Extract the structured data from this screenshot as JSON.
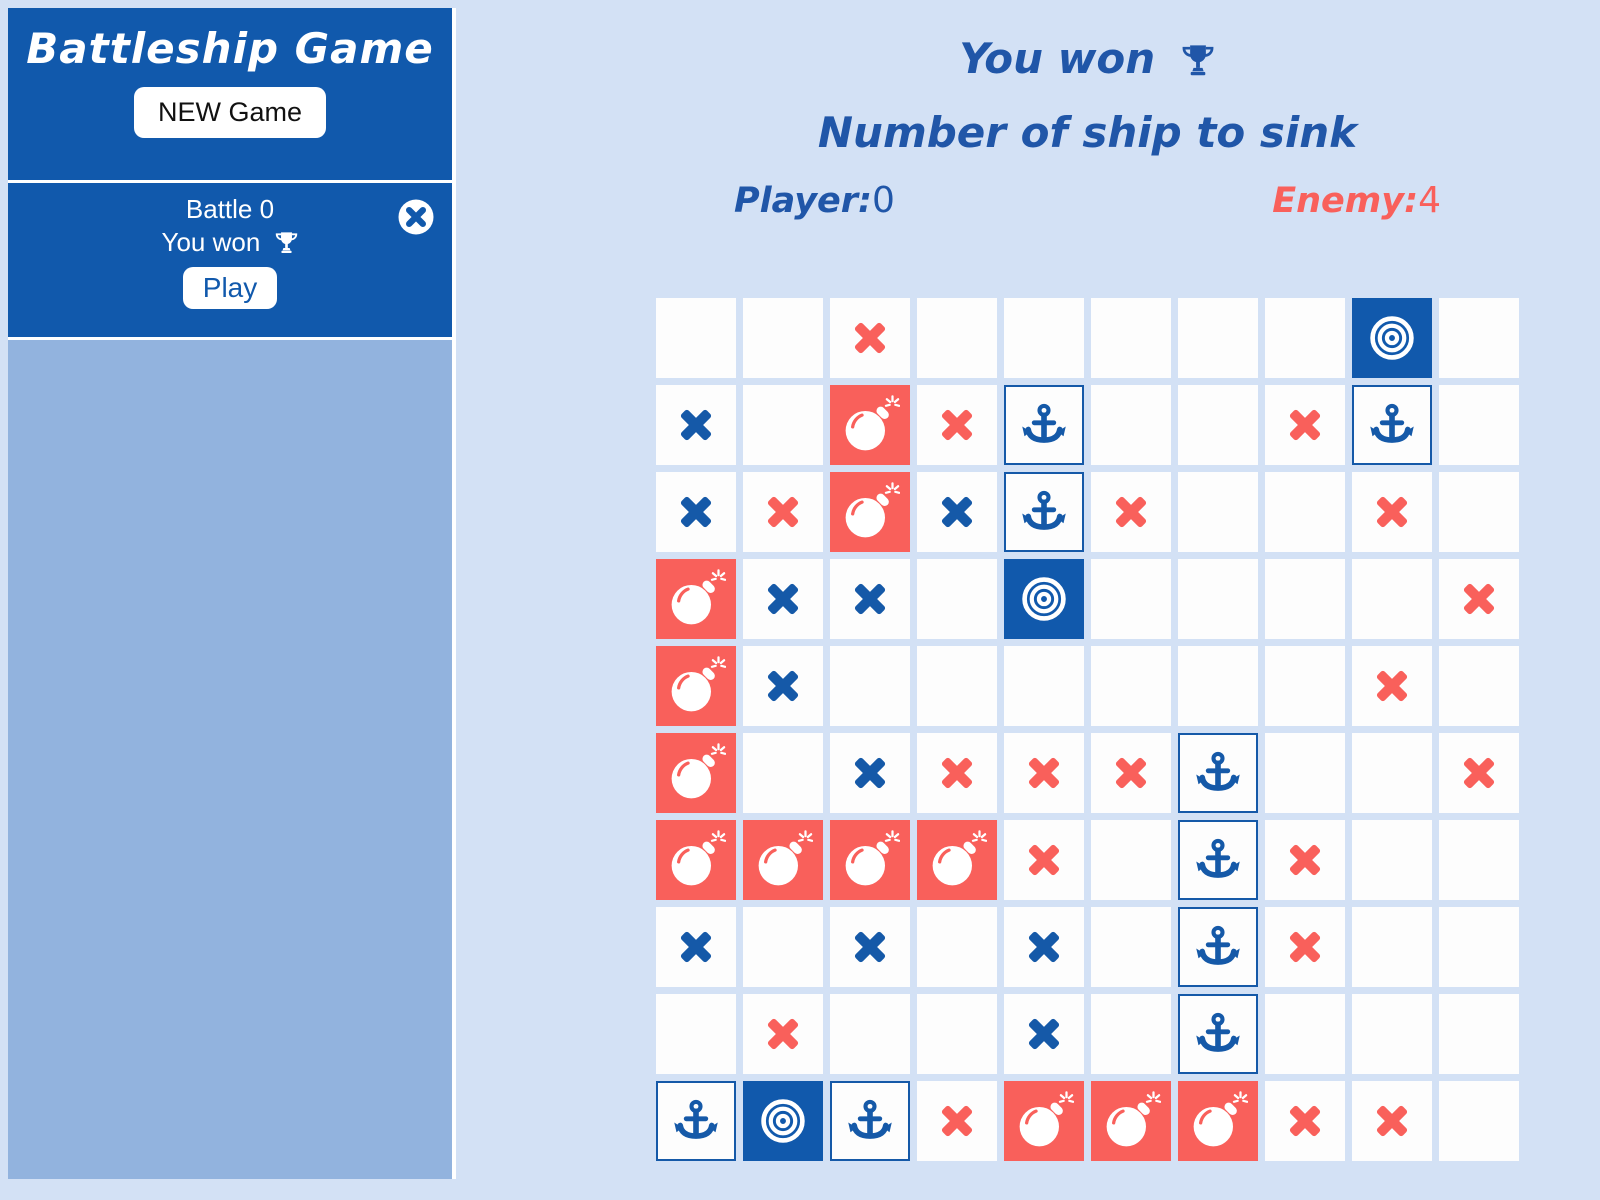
{
  "app": {
    "title": "Battleship Game"
  },
  "sidebar": {
    "new_game_label": "NEW Game",
    "battle": {
      "name": "Battle 0",
      "result": "You won",
      "play_label": "Play"
    }
  },
  "header": {
    "result_title": "You won",
    "subtitle": "Number of ship to sink",
    "player_label": "Player:",
    "player_count": "0",
    "enemy_label": "Enemy:",
    "enemy_count": "4"
  },
  "colors": {
    "page_bg": "#D3E1F5",
    "sidebar_blue": "#1159AC",
    "sidebar_light": "#92B3DE",
    "header_text_blue": "#2056A8",
    "mark_blue": "#1559A8",
    "salmon_red": "#F9605B",
    "cell_bg": "#FDFDFD"
  },
  "grid": {
    "cell_types": {
      "bx": "blue-x-mark",
      "rx": "red-x-mark",
      "bomb": "bomb-hit",
      "anchor": "ship-anchor",
      "target": "sunk-target",
      "": "empty"
    },
    "rows": [
      [
        "",
        "",
        "rx",
        "",
        "",
        "",
        "",
        "",
        "target",
        ""
      ],
      [
        "bx",
        "",
        "bomb",
        "rx",
        "anchor",
        "",
        "",
        "rx",
        "anchor",
        ""
      ],
      [
        "bx",
        "rx",
        "bomb",
        "bx",
        "anchor",
        "rx",
        "",
        "",
        "rx",
        ""
      ],
      [
        "bomb",
        "bx",
        "bx",
        "",
        "target",
        "",
        "",
        "",
        "",
        "rx"
      ],
      [
        "bomb",
        "bx",
        "",
        "",
        "",
        "",
        "",
        "",
        "rx",
        ""
      ],
      [
        "bomb",
        "",
        "bx",
        "rx",
        "rx",
        "rx",
        "anchor",
        "",
        "",
        "rx"
      ],
      [
        "bomb",
        "bomb",
        "bomb",
        "bomb",
        "rx",
        "",
        "anchor",
        "rx",
        "",
        ""
      ],
      [
        "bx",
        "",
        "bx",
        "",
        "bx",
        "",
        "anchor",
        "rx",
        "",
        ""
      ],
      [
        "",
        "rx",
        "",
        "",
        "bx",
        "",
        "anchor",
        "",
        "",
        ""
      ],
      [
        "anchor",
        "target",
        "anchor",
        "rx",
        "bomb",
        "bomb",
        "bomb",
        "rx",
        "rx",
        ""
      ]
    ]
  }
}
